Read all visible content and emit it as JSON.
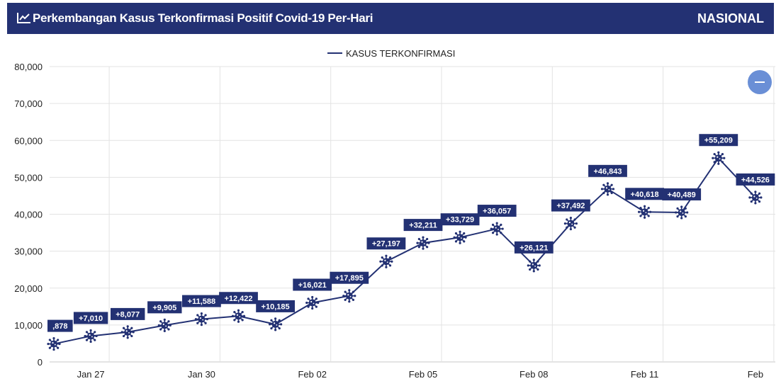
{
  "header": {
    "title": "Perkembangan Kasus Terkonfirmasi Positif Covid-19 Per-Hari",
    "region": "NASIONAL",
    "icon": "line-chart-icon"
  },
  "colors": {
    "brand": "#233173",
    "line": "#233173",
    "grid": "#e3e3e3",
    "zoom": "#6a8fd6"
  },
  "chart_data": {
    "type": "line",
    "title": "",
    "legend": {
      "label": "KASUS TERKONFIRMASI",
      "position": "top"
    },
    "x_ticks": [
      {
        "label": "Jan 27",
        "day": 1
      },
      {
        "label": "Jan 30",
        "day": 4
      },
      {
        "label": "Feb 02",
        "day": 7
      },
      {
        "label": "Feb 05",
        "day": 10
      },
      {
        "label": "Feb 08",
        "day": 13
      },
      {
        "label": "Feb 11",
        "day": 16
      },
      {
        "label": "Feb",
        "day": 19
      }
    ],
    "y_ticks": [
      "0",
      "10,000",
      "20,000",
      "30,000",
      "40,000",
      "50,000",
      "60,000",
      "70,000",
      "80,000"
    ],
    "ylim": [
      0,
      80000
    ],
    "grid": true,
    "series": [
      {
        "name": "KASUS TERKONFIRMASI",
        "points": [
          {
            "day": 0,
            "value": 4878,
            "label": ",878"
          },
          {
            "day": 1,
            "value": 7010,
            "label": "+7,010"
          },
          {
            "day": 2,
            "value": 8077,
            "label": "+8,077"
          },
          {
            "day": 3,
            "value": 9905,
            "label": "+9,905"
          },
          {
            "day": 4,
            "value": 11588,
            "label": "+11,588"
          },
          {
            "day": 5,
            "value": 12422,
            "label": "+12,422"
          },
          {
            "day": 6,
            "value": 10185,
            "label": "+10,185"
          },
          {
            "day": 7,
            "value": 16021,
            "label": "+16,021"
          },
          {
            "day": 8,
            "value": 17895,
            "label": "+17,895"
          },
          {
            "day": 9,
            "value": 27197,
            "label": "+27,197"
          },
          {
            "day": 10,
            "value": 32211,
            "label": "+32,211"
          },
          {
            "day": 11,
            "value": 33729,
            "label": "+33,729"
          },
          {
            "day": 12,
            "value": 36057,
            "label": "+36,057"
          },
          {
            "day": 13,
            "value": 26121,
            "label": "+26,121"
          },
          {
            "day": 14,
            "value": 37492,
            "label": "+37,492"
          },
          {
            "day": 15,
            "value": 46843,
            "label": "+46,843"
          },
          {
            "day": 16,
            "value": 40618,
            "label": "+40,618"
          },
          {
            "day": 17,
            "value": 40489,
            "label": "+40,489"
          },
          {
            "day": 18,
            "value": 55209,
            "label": "+55,209"
          },
          {
            "day": 19,
            "value": 44526,
            "label": "+44,526"
          }
        ]
      }
    ]
  }
}
